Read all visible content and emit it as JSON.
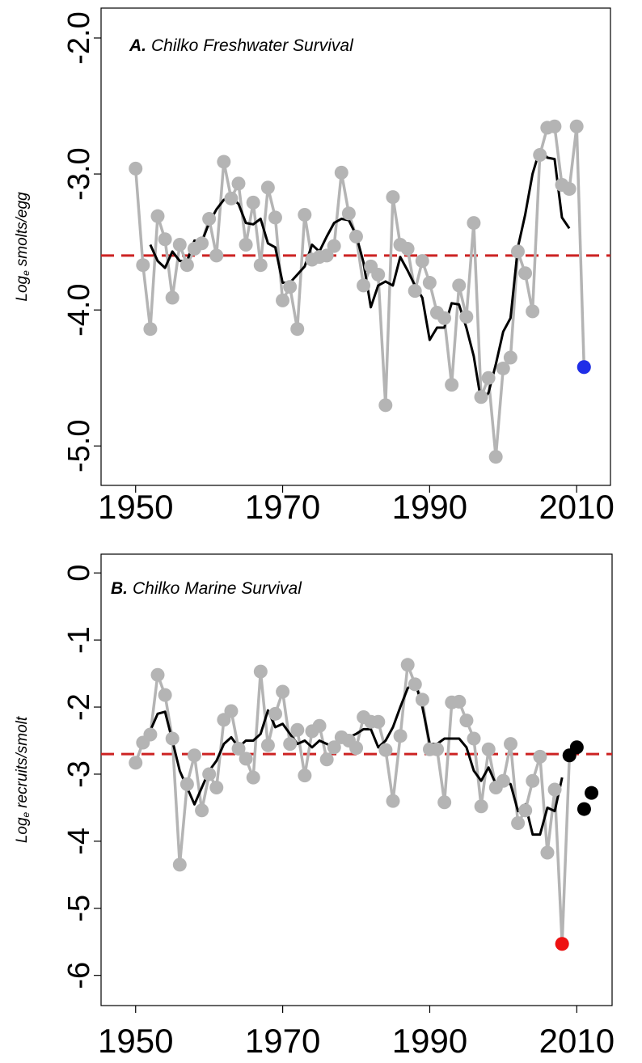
{
  "chart_data": [
    {
      "type": "line",
      "title": {
        "label": "A.",
        "text": "Chilko Freshwater Survival"
      },
      "ylabel": {
        "text": "Log",
        "subscript": "e",
        "suffix": "smolts/egg"
      },
      "xlim": [
        1945.3,
        2014.6
      ],
      "ylim": [
        -1.78,
        -5.29
      ],
      "xticks": [
        1950,
        1970,
        1990,
        2010
      ],
      "yticks": [
        {
          "value": -2,
          "label": "-2.0"
        },
        {
          "value": -3,
          "label": "-3.0"
        },
        {
          "value": -4,
          "label": "-4.0"
        },
        {
          "value": -5,
          "label": "-5.0"
        }
      ],
      "hline": {
        "value": -3.6,
        "color": "#cc2222",
        "dashed": true
      },
      "series": [
        {
          "color": "#b4b4b4",
          "style": "lines+markers",
          "x": [
            1950,
            1951,
            1952,
            1953,
            1954,
            1955,
            1956,
            1957,
            1958,
            1959,
            1960,
            1961,
            1962,
            1963,
            1964,
            1965,
            1966,
            1967,
            1968,
            1969,
            1970,
            1971,
            1972,
            1973,
            1974,
            1975,
            1976,
            1977,
            1978,
            1979,
            1980,
            1981,
            1982,
            1983,
            1984,
            1985,
            1986,
            1987,
            1988,
            1989,
            1990,
            1991,
            1992,
            1993,
            1994,
            1995,
            1996,
            1997,
            1998,
            1999,
            2000,
            2001,
            2002,
            2003,
            2004,
            2005,
            2006,
            2007,
            2008,
            2009,
            2010,
            2011
          ],
          "values": [
            -2.96,
            -3.67,
            -4.14,
            -3.31,
            -3.48,
            -3.91,
            -3.52,
            -3.67,
            -3.55,
            -3.51,
            -3.33,
            -3.6,
            -2.91,
            -3.18,
            -3.07,
            -3.52,
            -3.21,
            -3.67,
            -3.1,
            -3.32,
            -3.93,
            -3.83,
            -4.14,
            -3.3,
            -3.63,
            -3.61,
            -3.6,
            -3.53,
            -2.99,
            -3.29,
            -3.46,
            -3.82,
            -3.68,
            -3.74,
            -4.7,
            -3.17,
            -3.52,
            -3.55,
            -3.86,
            -3.64,
            -3.8,
            -4.02,
            -4.06,
            -4.55,
            -3.82,
            -4.05,
            -3.36,
            -4.64,
            -4.5,
            -5.08,
            -4.43,
            -4.35,
            -3.57,
            -3.73,
            -4.01,
            -2.86,
            -2.66,
            -2.65,
            -3.08,
            -3.11,
            -2.65,
            -4.42
          ]
        },
        {
          "color": "#000000",
          "style": "line",
          "x": [
            1952,
            1953,
            1954,
            1955,
            1956,
            1957,
            1958,
            1959,
            1960,
            1961,
            1962,
            1963,
            1964,
            1965,
            1966,
            1967,
            1968,
            1969,
            1970,
            1971,
            1972,
            1973,
            1974,
            1975,
            1976,
            1977,
            1978,
            1979,
            1980,
            1981,
            1982,
            1983,
            1984,
            1985,
            1986,
            1987,
            1988,
            1989,
            1990,
            1991,
            1992,
            1993,
            1994,
            1995,
            1996,
            1997,
            1998,
            1999,
            2000,
            2001,
            2002,
            2003,
            2004,
            2005,
            2006,
            2007,
            2008,
            2009
          ],
          "values": [
            -3.52,
            -3.64,
            -3.69,
            -3.57,
            -3.64,
            -3.64,
            -3.49,
            -3.5,
            -3.36,
            -3.26,
            -3.19,
            -3.17,
            -3.22,
            -3.36,
            -3.37,
            -3.33,
            -3.51,
            -3.54,
            -3.8,
            -3.8,
            -3.74,
            -3.68,
            -3.52,
            -3.57,
            -3.46,
            -3.36,
            -3.33,
            -3.34,
            -3.45,
            -3.65,
            -3.98,
            -3.82,
            -3.79,
            -3.82,
            -3.61,
            -3.71,
            -3.82,
            -3.91,
            -4.22,
            -4.13,
            -4.13,
            -3.95,
            -3.96,
            -4.13,
            -4.34,
            -4.67,
            -4.61,
            -4.4,
            -4.16,
            -4.06,
            -3.54,
            -3.3,
            -3.0,
            -2.82,
            -2.88,
            -2.89,
            -3.32,
            -3.4
          ]
        },
        {
          "color": "#1f2ee8",
          "style": "markers",
          "x": [
            2011
          ],
          "values": [
            -4.42
          ]
        }
      ]
    },
    {
      "type": "line",
      "title": {
        "label": "B.",
        "text": "Chilko Marine Survival"
      },
      "ylabel": {
        "text": "Log",
        "subscript": "e",
        "suffix": "recruits/smolt"
      },
      "xlim": [
        1945.3,
        2014.8
      ],
      "ylim": [
        0.28,
        -6.45
      ],
      "xticks": [
        1950,
        1970,
        1990,
        2010
      ],
      "yticks": [
        0,
        -1,
        -2,
        -3,
        -4,
        -5,
        -6
      ],
      "hline": {
        "value": -2.7,
        "color": "#cc2222",
        "dashed": true
      },
      "series": [
        {
          "color": "#b4b4b4",
          "style": "lines+markers",
          "x": [
            1950,
            1951,
            1952,
            1953,
            1954,
            1955,
            1956,
            1957,
            1958,
            1959,
            1960,
            1961,
            1962,
            1963,
            1964,
            1965,
            1966,
            1967,
            1968,
            1969,
            1970,
            1971,
            1972,
            1973,
            1974,
            1975,
            1976,
            1977,
            1978,
            1979,
            1980,
            1981,
            1982,
            1983,
            1984,
            1985,
            1986,
            1987,
            1988,
            1989,
            1990,
            1991,
            1992,
            1993,
            1994,
            1995,
            1996,
            1997,
            1998,
            1999,
            2000,
            2001,
            2002,
            2003,
            2004,
            2005,
            2006,
            2007,
            2008,
            2009
          ],
          "values": [
            -2.83,
            -2.53,
            -2.41,
            -1.52,
            -1.82,
            -2.47,
            -4.35,
            -3.15,
            -2.72,
            -3.54,
            -3.0,
            -3.2,
            -2.19,
            -2.06,
            -2.62,
            -2.77,
            -3.05,
            -1.47,
            -2.57,
            -2.1,
            -1.77,
            -2.55,
            -2.34,
            -3.02,
            -2.36,
            -2.28,
            -2.78,
            -2.6,
            -2.45,
            -2.5,
            -2.61,
            -2.15,
            -2.22,
            -2.22,
            -2.64,
            -3.4,
            -2.43,
            -1.37,
            -1.66,
            -1.89,
            -2.63,
            -2.63,
            -3.42,
            -1.93,
            -1.92,
            -2.2,
            -2.47,
            -3.48,
            -2.63,
            -3.2,
            -3.1,
            -2.55,
            -3.73,
            -3.54,
            -3.1,
            -2.74,
            -4.17,
            -3.23,
            -5.53,
            -2.72
          ]
        },
        {
          "color": "#000000",
          "style": "line",
          "x": [
            1952,
            1953,
            1954,
            1955,
            1956,
            1957,
            1958,
            1959,
            1960,
            1961,
            1962,
            1963,
            1964,
            1965,
            1966,
            1967,
            1968,
            1969,
            1970,
            1971,
            1972,
            1973,
            1974,
            1975,
            1976,
            1977,
            1978,
            1979,
            1980,
            1981,
            1982,
            1983,
            1984,
            1985,
            1986,
            1987,
            1988,
            1989,
            1990,
            1991,
            1992,
            1993,
            1994,
            1995,
            1996,
            1997,
            1998,
            1999,
            2000,
            2001,
            2002,
            2003,
            2004,
            2005,
            2006,
            2007,
            2008
          ],
          "values": [
            -2.35,
            -2.1,
            -2.07,
            -2.5,
            -2.95,
            -3.2,
            -3.45,
            -3.2,
            -2.95,
            -2.8,
            -2.55,
            -2.45,
            -2.6,
            -2.5,
            -2.5,
            -2.4,
            -2.05,
            -2.3,
            -2.25,
            -2.4,
            -2.55,
            -2.5,
            -2.6,
            -2.5,
            -2.55,
            -2.6,
            -2.5,
            -2.45,
            -2.4,
            -2.33,
            -2.33,
            -2.6,
            -2.5,
            -2.3,
            -2.0,
            -1.72,
            -1.62,
            -2.0,
            -2.55,
            -2.55,
            -2.47,
            -2.47,
            -2.47,
            -2.6,
            -2.95,
            -3.1,
            -2.9,
            -3.15,
            -3.1,
            -3.15,
            -3.55,
            -3.45,
            -3.9,
            -3.9,
            -3.5,
            -3.55,
            -3.05
          ]
        },
        {
          "color": "#ee1111",
          "style": "markers",
          "x": [
            2008
          ],
          "values": [
            -5.53
          ]
        },
        {
          "color": "#000000",
          "style": "markers",
          "x": [
            2009,
            2010,
            2011,
            2012
          ],
          "values": [
            -2.72,
            -2.6,
            -3.52,
            -3.28
          ]
        }
      ]
    }
  ]
}
